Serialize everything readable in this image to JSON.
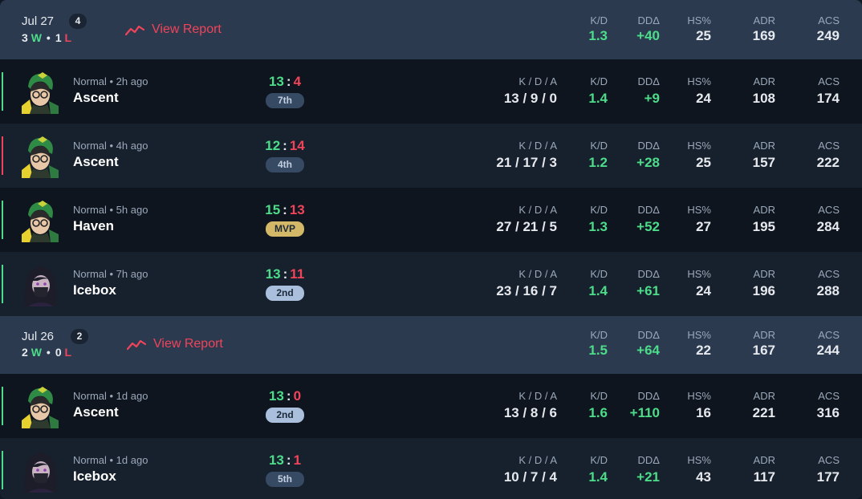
{
  "stat_labels": {
    "kda": "K / D / A",
    "kd": "K/D",
    "dd": "DDΔ",
    "hs": "HS%",
    "adr": "ADR",
    "acs": "ACS"
  },
  "days": [
    {
      "date": "Jul 27",
      "count": "4",
      "wins": "3",
      "win_letter": "W",
      "losses": "1",
      "loss_letter": "L",
      "report": "View Report",
      "kd": "1.3",
      "dd": "+40",
      "hs": "25",
      "adr": "169",
      "acs": "249"
    },
    {
      "date": "Jul 26",
      "count": "2",
      "wins": "2",
      "win_letter": "W",
      "losses": "0",
      "loss_letter": "L",
      "report": "View Report",
      "kd": "1.5",
      "dd": "+64",
      "hs": "22",
      "adr": "167",
      "acs": "244"
    }
  ],
  "matches": [
    {
      "result": "win",
      "agent": "killjoy",
      "mode": "Normal • 2h ago",
      "map": "Ascent",
      "score_a": "13",
      "score_b": "4",
      "place": "7th",
      "place_style": "normal",
      "kda": "13 / 9 / 0",
      "kd": "1.4",
      "dd": "+9",
      "hs": "24",
      "adr": "108",
      "acs": "174"
    },
    {
      "result": "loss",
      "agent": "killjoy",
      "mode": "Normal • 4h ago",
      "map": "Ascent",
      "score_a": "12",
      "score_b": "14",
      "place": "4th",
      "place_style": "normal",
      "kda": "21 / 17 / 3",
      "kd": "1.2",
      "dd": "+28",
      "hs": "25",
      "adr": "157",
      "acs": "222"
    },
    {
      "result": "win",
      "agent": "killjoy",
      "mode": "Normal • 5h ago",
      "map": "Haven",
      "score_a": "15",
      "score_b": "13",
      "place": "MVP",
      "place_style": "mvp",
      "kda": "27 / 21 / 5",
      "kd": "1.3",
      "dd": "+52",
      "hs": "27",
      "adr": "195",
      "acs": "284"
    },
    {
      "result": "win",
      "agent": "reyna",
      "mode": "Normal • 7h ago",
      "map": "Icebox",
      "score_a": "13",
      "score_b": "11",
      "place": "2nd",
      "place_style": "top",
      "kda": "23 / 16 / 7",
      "kd": "1.4",
      "dd": "+61",
      "hs": "24",
      "adr": "196",
      "acs": "288"
    },
    {
      "result": "win",
      "agent": "killjoy",
      "mode": "Normal • 1d ago",
      "map": "Ascent",
      "score_a": "13",
      "score_b": "0",
      "place": "2nd",
      "place_style": "top",
      "kda": "13 / 8 / 6",
      "kd": "1.6",
      "dd": "+110",
      "hs": "16",
      "adr": "221",
      "acs": "316"
    },
    {
      "result": "win",
      "agent": "reyna",
      "mode": "Normal • 1d ago",
      "map": "Icebox",
      "score_a": "13",
      "score_b": "1",
      "place": "5th",
      "place_style": "normal",
      "kda": "10 / 7 / 4",
      "kd": "1.4",
      "dd": "+21",
      "hs": "43",
      "adr": "117",
      "acs": "177"
    }
  ],
  "colors": {
    "win": "#4ddc8a",
    "loss": "#f0445a",
    "header": "#2b3a4f",
    "row_dark": "#0e151e",
    "row_light": "#17212d"
  }
}
